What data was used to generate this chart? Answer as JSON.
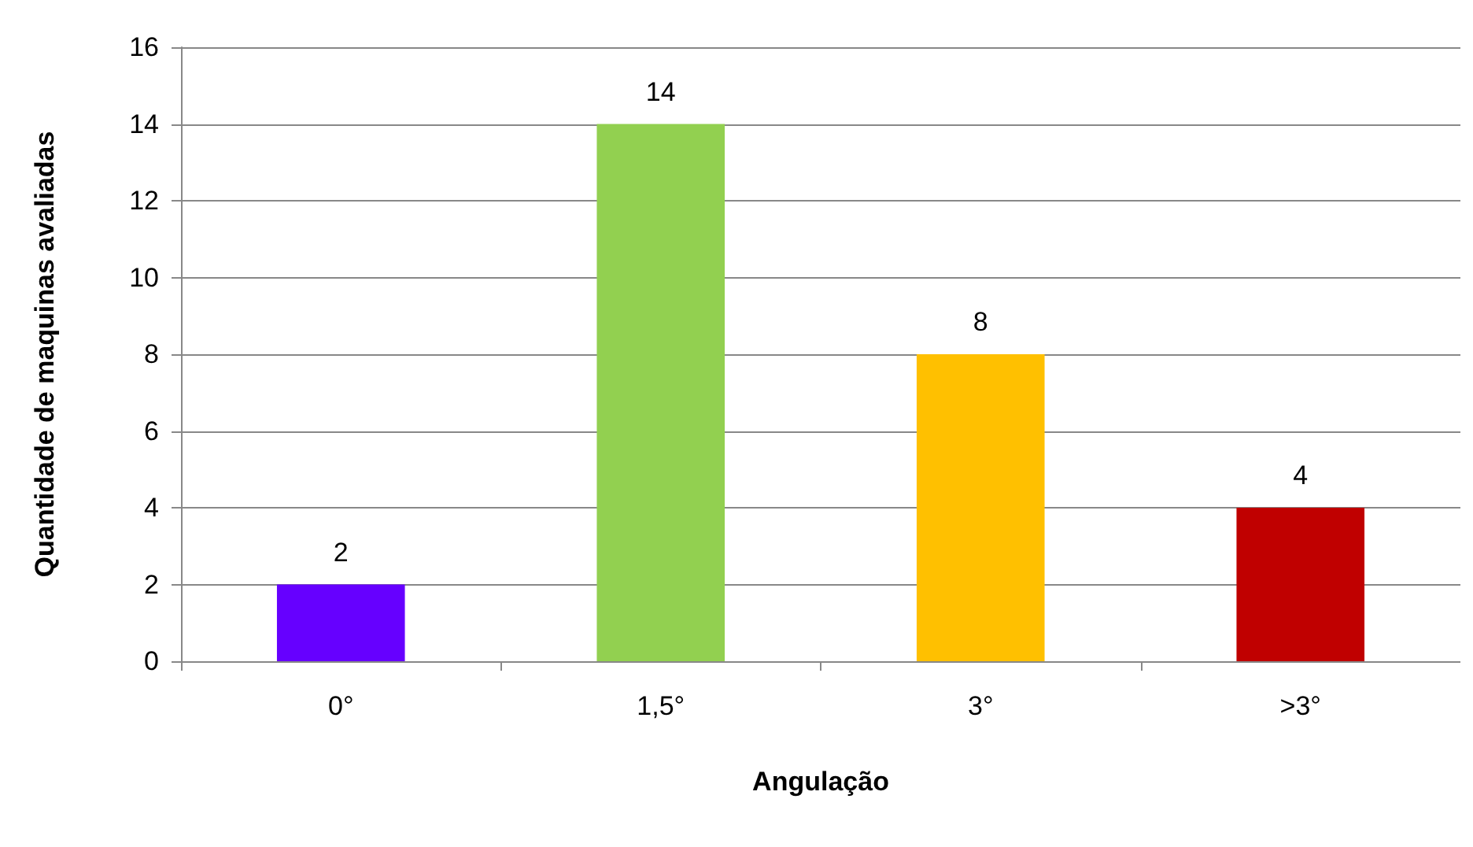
{
  "chart_data": {
    "type": "bar",
    "xlabel": "Angulação",
    "ylabel": "Quantidade de maquinas avaliadas",
    "categories": [
      "0°",
      "1,5°",
      "3°",
      ">3°"
    ],
    "values": [
      2,
      14,
      8,
      4
    ],
    "colors": [
      "#6600ff",
      "#92d050",
      "#ffc000",
      "#c00000"
    ],
    "ylim": [
      0,
      16
    ],
    "yticks": [
      0,
      2,
      4,
      6,
      8,
      10,
      12,
      14,
      16
    ],
    "grid": "y",
    "data_labels": true
  }
}
